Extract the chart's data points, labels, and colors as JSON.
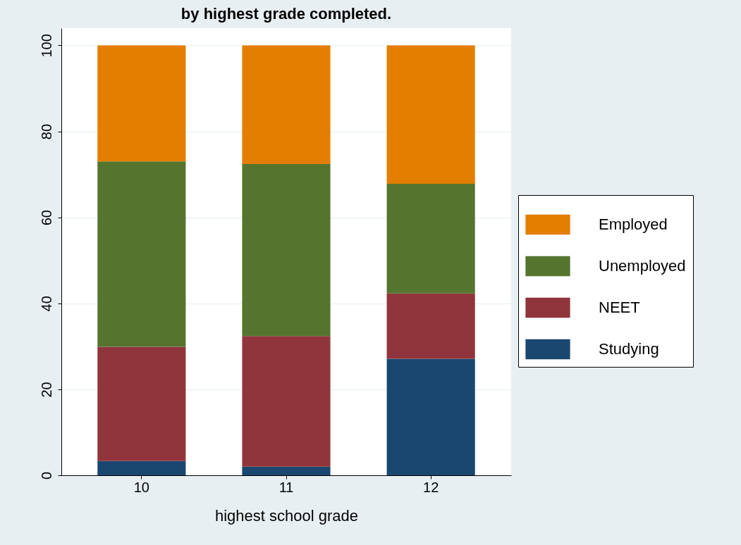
{
  "chart_data": {
    "type": "bar",
    "title": "by highest grade completed.",
    "xlabel": "highest school grade",
    "categories": [
      "10",
      "11",
      "12"
    ],
    "stacked": true,
    "ylim": [
      0,
      104
    ],
    "yticks": [
      0,
      20,
      40,
      60,
      80,
      100
    ],
    "grid": "y",
    "legend": "right",
    "series": [
      {
        "name": "Studying",
        "color": "#1a476f",
        "values": [
          3.3,
          2.0,
          27.1
        ]
      },
      {
        "name": "NEET",
        "color": "#90353b",
        "values": [
          26.6,
          30.4,
          15.2
        ]
      },
      {
        "name": "Unemployed",
        "color": "#55752f",
        "values": [
          43.1,
          40.0,
          25.5
        ]
      },
      {
        "name": "Employed",
        "color": "#e37e00",
        "values": [
          27.0,
          27.6,
          32.2
        ]
      }
    ]
  }
}
